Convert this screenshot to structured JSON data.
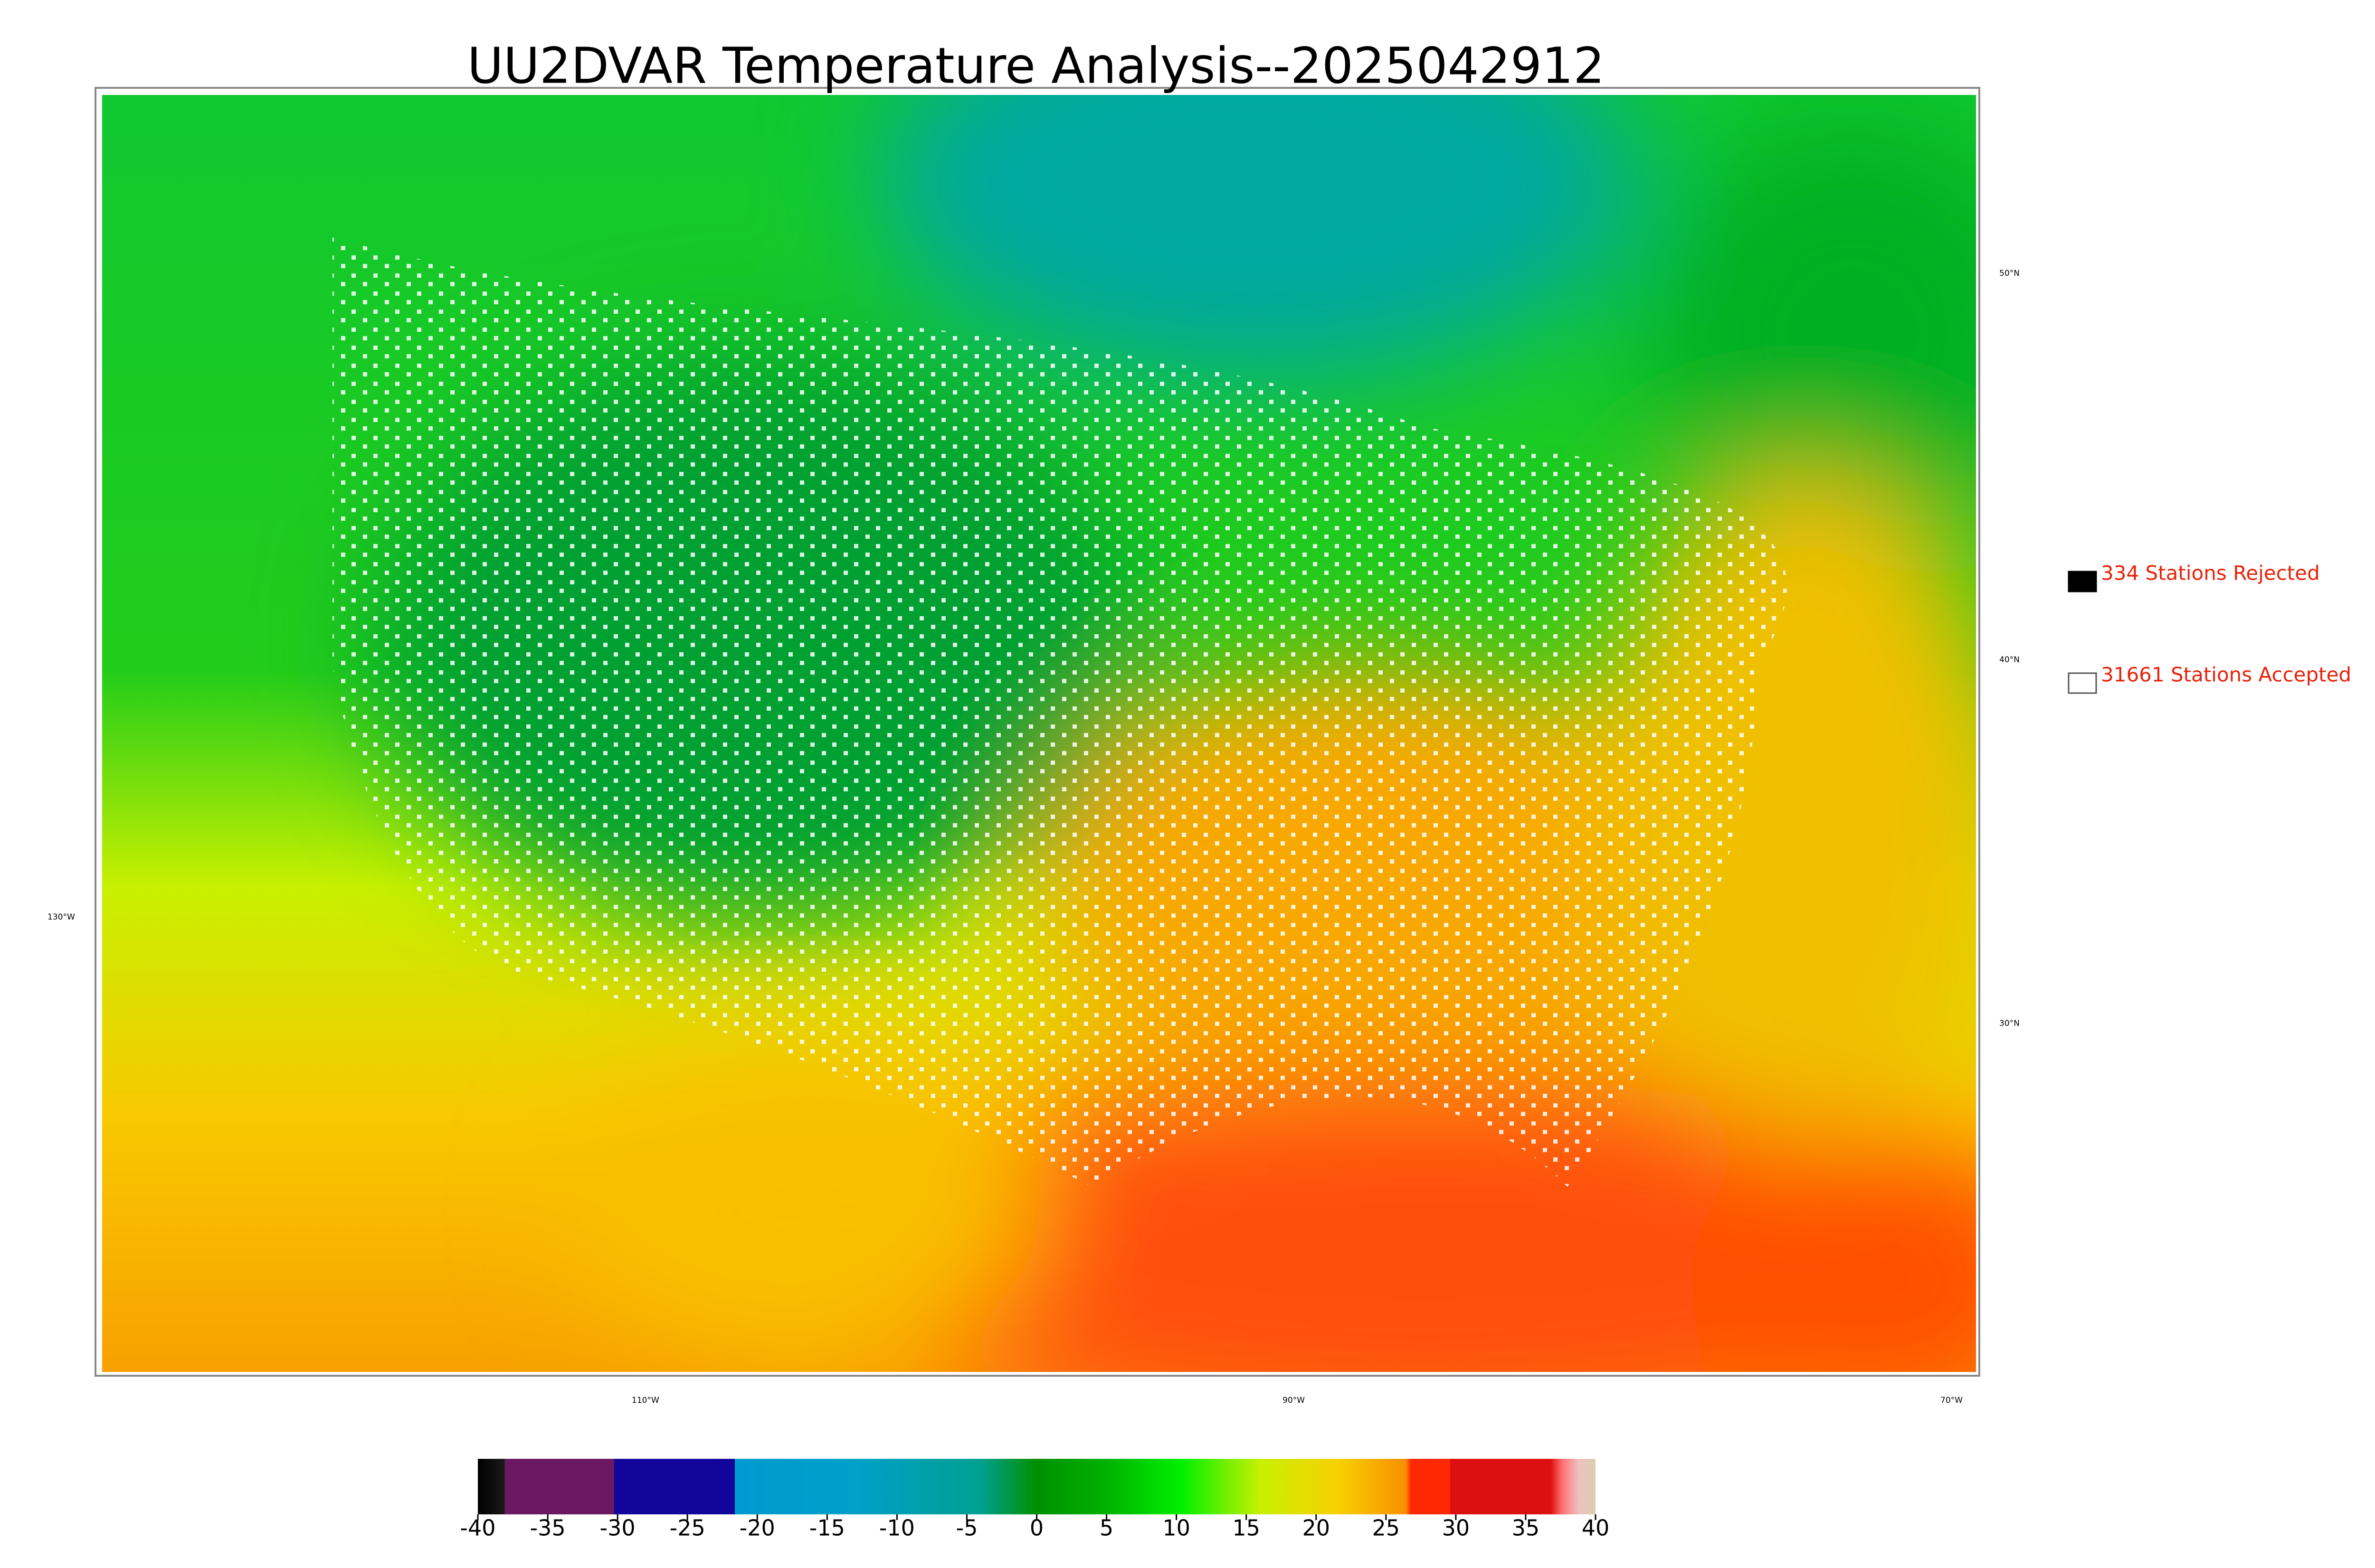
{
  "title": "UU2DVAR Temperature Analysis--2025042912",
  "legend": [
    {
      "label": "334 Stations Rejected",
      "color": "#000000"
    },
    {
      "label": "31661 Stations Accepted",
      "color": "#ffffff"
    }
  ],
  "lat_labels": [
    "50°N",
    "40°N",
    "30°N"
  ],
  "lon_labels": [
    "130°W",
    "110°W",
    "90°W",
    "70°W"
  ],
  "colorbar": {
    "lim": [
      -40,
      40
    ],
    "ticks": [
      -40,
      -35,
      -30,
      -25,
      -20,
      -15,
      -10,
      -5,
      0,
      5,
      10,
      15,
      20,
      25,
      30,
      35,
      40
    ]
  }
}
